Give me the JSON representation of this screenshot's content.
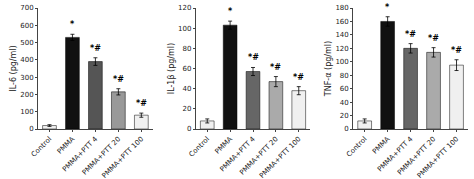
{
  "chart_data": [
    {
      "type": "bar",
      "ylabel": "IL-6 (pg/ml)",
      "categories": [
        "Control",
        "PMMA",
        "PMMA+PTT 4",
        "PMMA+PTT 20",
        "PMMA+PTT 100"
      ],
      "values": [
        20,
        530,
        390,
        215,
        80
      ],
      "errors": [
        5,
        18,
        22,
        18,
        12
      ],
      "colors": [
        "#f0f0f0",
        "#111111",
        "#555555",
        "#999999",
        "#f0f0f0"
      ],
      "annotations": [
        null,
        "*",
        "*#",
        "*#",
        "*#"
      ],
      "ylim": [
        0,
        700
      ],
      "yticks": [
        0,
        100,
        200,
        300,
        400,
        500,
        600,
        700
      ],
      "grid": false
    },
    {
      "type": "bar",
      "ylabel": "IL-1β (pg/ml)",
      "categories": [
        "Control",
        "PMMA",
        "PMMA+PTT 4",
        "PMMA+PTT 20",
        "PMMA+PTT 100"
      ],
      "values": [
        8,
        103,
        57,
        47,
        38
      ],
      "errors": [
        2,
        4,
        4,
        5,
        4
      ],
      "colors": [
        "#f0f0f0",
        "#111111",
        "#666666",
        "#aaaaaa",
        "#f0f0f0"
      ],
      "annotations": [
        null,
        "*",
        "*#",
        "*#",
        "*#"
      ],
      "ylim": [
        0,
        120
      ],
      "yticks": [
        0,
        20,
        40,
        60,
        80,
        100,
        120
      ],
      "grid": false
    },
    {
      "type": "bar",
      "ylabel": "TNF-α (pg/ml)",
      "categories": [
        "Control",
        "PMMA",
        "PMMA+PTT 4",
        "PMMA+PTT 20",
        "PMMA+PTT 100"
      ],
      "values": [
        12,
        160,
        120,
        114,
        95
      ],
      "errors": [
        3,
        7,
        7,
        7,
        8
      ],
      "colors": [
        "#f0f0f0",
        "#111111",
        "#666666",
        "#aaaaaa",
        "#f0f0f0"
      ],
      "annotations": [
        null,
        "*",
        "*#",
        "*#",
        "*#"
      ],
      "ylim": [
        0,
        180
      ],
      "yticks": [
        0,
        20,
        40,
        60,
        80,
        100,
        120,
        140,
        160,
        180
      ],
      "grid": false
    }
  ]
}
